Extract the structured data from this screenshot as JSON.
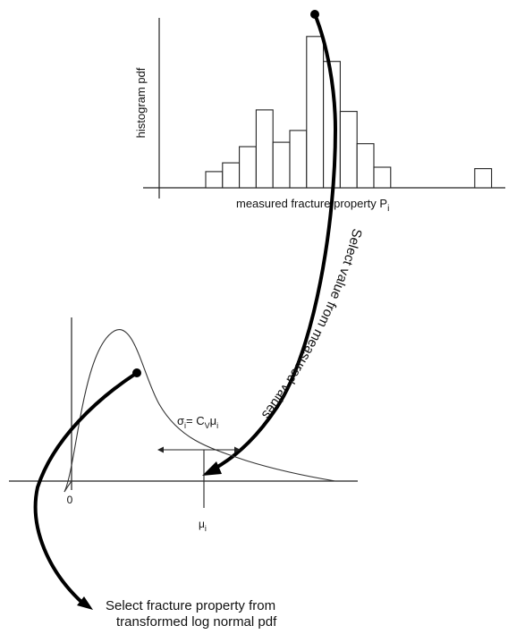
{
  "histogram": {
    "ylabel": "histogram pdf",
    "xlabel_main": "measured fracture property P",
    "xlabel_sub": "i",
    "bin_heights": [
      0.11,
      0.17,
      0.28,
      0.53,
      0.31,
      0.39,
      1.03,
      0.86,
      0.52,
      0.3,
      0.14,
      0,
      0,
      0,
      0,
      0,
      0.13
    ]
  },
  "curve_label": "Select value from measured values",
  "lognormal": {
    "origin_label": "0",
    "sigma_label": "σ",
    "sigma_sub": "i",
    "sigma_eq": "= C",
    "cv_sub": "V",
    "mu_in_eq": "μ",
    "mu_in_eq_sub": "i",
    "mu_label": "μ",
    "mu_sub": "i"
  },
  "caption": {
    "line1": "Select fracture property from",
    "line2": "transformed log normal pdf"
  }
}
